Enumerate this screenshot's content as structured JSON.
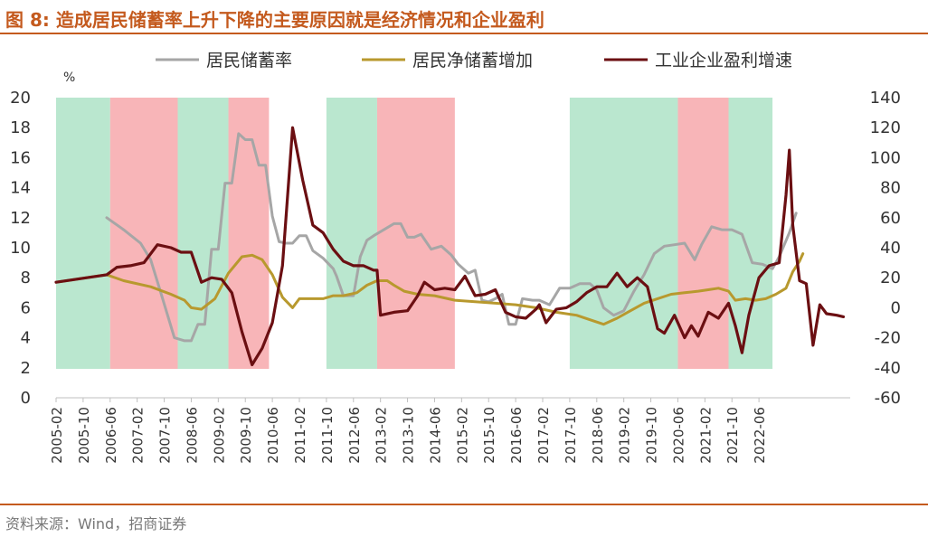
{
  "header": {
    "title": "图 8:  造成居民储蓄率上升下降的主要原因就是经济情况和企业盈利"
  },
  "footer": {
    "source": "资料来源：Wind，招商证券"
  },
  "chart_data": {
    "type": "line",
    "unit_label": "%",
    "left_axis": {
      "ylim": [
        0,
        20
      ],
      "ticks": [
        "0",
        "2",
        "4",
        "6",
        "8",
        "10",
        "12",
        "14",
        "16",
        "18",
        "20"
      ]
    },
    "right_axis": {
      "ylim": [
        -60,
        140
      ],
      "ticks": [
        "-60",
        "-40",
        "-20",
        "0",
        "20",
        "40",
        "60",
        "80",
        "100",
        "120",
        "140"
      ]
    },
    "x_tick_labels": [
      "2005-02",
      "2005-10",
      "2006-06",
      "2007-02",
      "2007-10",
      "2008-06",
      "2009-02",
      "2009-10",
      "2010-06",
      "2011-02",
      "2011-10",
      "2012-06",
      "2013-02",
      "2013-10",
      "2014-06",
      "2015-02",
      "2015-10",
      "2016-06",
      "2017-02",
      "2017-10",
      "2018-06",
      "2019-02",
      "2019-10",
      "2020-06",
      "2021-02",
      "2021-10",
      "2022-06"
    ],
    "legend": [
      {
        "name": "居民储蓄率",
        "color": "#a6a6a6"
      },
      {
        "name": "居民净储蓄增加",
        "color": "#b8992e"
      },
      {
        "name": "工业企业盈利增速",
        "color": "#6b0f12"
      }
    ],
    "shaded_periods": [
      {
        "start": "2005-02",
        "end": "2006-06",
        "color": "green"
      },
      {
        "start": "2006-06",
        "end": "2008-02",
        "color": "red"
      },
      {
        "start": "2008-02",
        "end": "2009-05",
        "color": "green"
      },
      {
        "start": "2009-05",
        "end": "2010-05",
        "color": "red"
      },
      {
        "start": "2011-10",
        "end": "2013-01",
        "color": "green"
      },
      {
        "start": "2013-01",
        "end": "2014-12",
        "color": "red"
      },
      {
        "start": "2017-10",
        "end": "2020-06",
        "color": "green"
      },
      {
        "start": "2020-06",
        "end": "2021-09",
        "color": "red"
      },
      {
        "start": "2021-09",
        "end": "2022-10",
        "color": "green"
      }
    ],
    "series": [
      {
        "name": "居民储蓄率",
        "axis": "left",
        "color": "#a6a6a6",
        "points": [
          [
            "2006-05",
            12.0
          ],
          [
            "2006-10",
            11.2
          ],
          [
            "2007-03",
            10.3
          ],
          [
            "2007-06",
            9.2
          ],
          [
            "2007-09",
            7.0
          ],
          [
            "2007-11",
            5.5
          ],
          [
            "2008-01",
            4.0
          ],
          [
            "2008-04",
            3.8
          ],
          [
            "2008-06",
            3.8
          ],
          [
            "2008-08",
            4.9
          ],
          [
            "2008-10",
            4.9
          ],
          [
            "2008-12",
            9.9
          ],
          [
            "2009-02",
            9.9
          ],
          [
            "2009-04",
            14.3
          ],
          [
            "2009-06",
            14.3
          ],
          [
            "2009-08",
            17.6
          ],
          [
            "2009-10",
            17.2
          ],
          [
            "2009-12",
            17.2
          ],
          [
            "2010-02",
            15.5
          ],
          [
            "2010-04",
            15.5
          ],
          [
            "2010-06",
            12.1
          ],
          [
            "2010-08",
            10.4
          ],
          [
            "2010-10",
            10.3
          ],
          [
            "2010-12",
            10.3
          ],
          [
            "2011-02",
            10.8
          ],
          [
            "2011-04",
            10.8
          ],
          [
            "2011-06",
            9.8
          ],
          [
            "2011-09",
            9.3
          ],
          [
            "2011-12",
            8.6
          ],
          [
            "2012-01",
            8.1
          ],
          [
            "2012-03",
            6.8
          ],
          [
            "2012-06",
            6.8
          ],
          [
            "2012-08",
            9.4
          ],
          [
            "2012-10",
            10.5
          ],
          [
            "2012-12",
            10.8
          ],
          [
            "2013-03",
            11.2
          ],
          [
            "2013-06",
            11.6
          ],
          [
            "2013-08",
            11.6
          ],
          [
            "2013-10",
            10.7
          ],
          [
            "2013-12",
            10.7
          ],
          [
            "2014-02",
            10.9
          ],
          [
            "2014-05",
            9.9
          ],
          [
            "2014-08",
            10.1
          ],
          [
            "2014-11",
            9.5
          ],
          [
            "2015-01",
            8.9
          ],
          [
            "2015-04",
            8.3
          ],
          [
            "2015-06",
            8.5
          ],
          [
            "2015-08",
            6.5
          ],
          [
            "2015-10",
            6.4
          ],
          [
            "2015-12",
            6.6
          ],
          [
            "2016-02",
            6.9
          ],
          [
            "2016-04",
            4.9
          ],
          [
            "2016-06",
            4.9
          ],
          [
            "2016-08",
            6.6
          ],
          [
            "2016-11",
            6.5
          ],
          [
            "2017-01",
            6.5
          ],
          [
            "2017-04",
            6.2
          ],
          [
            "2017-07",
            7.3
          ],
          [
            "2017-10",
            7.3
          ],
          [
            "2018-01",
            7.6
          ],
          [
            "2018-04",
            7.6
          ],
          [
            "2018-06",
            7.2
          ],
          [
            "2018-08",
            6.0
          ],
          [
            "2018-11",
            5.5
          ],
          [
            "2019-02",
            5.8
          ],
          [
            "2019-05",
            7.1
          ],
          [
            "2019-08",
            8.2
          ],
          [
            "2019-11",
            9.6
          ],
          [
            "2020-02",
            10.1
          ],
          [
            "2020-05",
            10.2
          ],
          [
            "2020-08",
            10.3
          ],
          [
            "2020-11",
            9.2
          ],
          [
            "2021-01",
            10.2
          ],
          [
            "2021-04",
            11.4
          ],
          [
            "2021-07",
            11.2
          ],
          [
            "2021-10",
            11.2
          ],
          [
            "2022-01",
            10.9
          ],
          [
            "2022-04",
            9.0
          ],
          [
            "2022-07",
            8.9
          ],
          [
            "2022-10",
            8.6
          ],
          [
            "2022-12",
            9.4
          ],
          [
            "2023-03",
            11.0
          ],
          [
            "2023-05",
            12.3
          ]
        ]
      },
      {
        "name": "居民净储蓄增加",
        "axis": "left",
        "color": "#b8992e",
        "points": [
          [
            "2005-02",
            7.7
          ],
          [
            "2006-05",
            8.2
          ],
          [
            "2006-10",
            7.8
          ],
          [
            "2007-06",
            7.4
          ],
          [
            "2007-12",
            6.9
          ],
          [
            "2008-04",
            6.5
          ],
          [
            "2008-06",
            6.0
          ],
          [
            "2008-09",
            5.9
          ],
          [
            "2009-01",
            6.6
          ],
          [
            "2009-05",
            8.3
          ],
          [
            "2009-09",
            9.4
          ],
          [
            "2009-12",
            9.5
          ],
          [
            "2010-03",
            9.2
          ],
          [
            "2010-06",
            8.2
          ],
          [
            "2010-09",
            6.7
          ],
          [
            "2010-12",
            6.0
          ],
          [
            "2011-02",
            6.6
          ],
          [
            "2011-06",
            6.6
          ],
          [
            "2011-09",
            6.6
          ],
          [
            "2011-12",
            6.8
          ],
          [
            "2012-03",
            6.8
          ],
          [
            "2012-07",
            7.0
          ],
          [
            "2012-10",
            7.5
          ],
          [
            "2013-01",
            7.8
          ],
          [
            "2013-04",
            7.8
          ],
          [
            "2013-06",
            7.5
          ],
          [
            "2013-09",
            7.1
          ],
          [
            "2014-01",
            6.9
          ],
          [
            "2014-06",
            6.8
          ],
          [
            "2014-12",
            6.5
          ],
          [
            "2015-06",
            6.4
          ],
          [
            "2015-12",
            6.3
          ],
          [
            "2016-06",
            6.2
          ],
          [
            "2016-12",
            6.0
          ],
          [
            "2017-06",
            5.7
          ],
          [
            "2017-12",
            5.5
          ],
          [
            "2018-04",
            5.2
          ],
          [
            "2018-08",
            4.9
          ],
          [
            "2018-12",
            5.3
          ],
          [
            "2019-04",
            5.8
          ],
          [
            "2019-08",
            6.3
          ],
          [
            "2019-12",
            6.6
          ],
          [
            "2020-04",
            6.9
          ],
          [
            "2020-08",
            7.0
          ],
          [
            "2020-12",
            7.1
          ],
          [
            "2021-03",
            7.2
          ],
          [
            "2021-06",
            7.3
          ],
          [
            "2021-09",
            7.1
          ],
          [
            "2021-11",
            6.5
          ],
          [
            "2022-02",
            6.6
          ],
          [
            "2022-05",
            6.5
          ],
          [
            "2022-08",
            6.6
          ],
          [
            "2022-11",
            6.9
          ],
          [
            "2023-02",
            7.3
          ],
          [
            "2023-04",
            8.4
          ],
          [
            "2023-06",
            9.1
          ],
          [
            "2023-07",
            9.6
          ]
        ]
      },
      {
        "name": "工业企业盈利增速",
        "axis": "right",
        "color": "#6b0f12",
        "points": [
          [
            "2005-02",
            17
          ],
          [
            "2006-05",
            22
          ],
          [
            "2006-08",
            27
          ],
          [
            "2006-12",
            28
          ],
          [
            "2007-04",
            30
          ],
          [
            "2007-08",
            42
          ],
          [
            "2007-12",
            40
          ],
          [
            "2008-03",
            37
          ],
          [
            "2008-06",
            37
          ],
          [
            "2008-09",
            17
          ],
          [
            "2008-12",
            20
          ],
          [
            "2009-03",
            19
          ],
          [
            "2009-06",
            10
          ],
          [
            "2009-09",
            -16
          ],
          [
            "2009-12",
            -38
          ],
          [
            "2010-03",
            -27
          ],
          [
            "2010-06",
            -10
          ],
          [
            "2010-09",
            28
          ],
          [
            "2010-12",
            120
          ],
          [
            "2011-03",
            85
          ],
          [
            "2011-06",
            55
          ],
          [
            "2011-09",
            50
          ],
          [
            "2011-12",
            39
          ],
          [
            "2012-03",
            31
          ],
          [
            "2012-06",
            28
          ],
          [
            "2012-09",
            28
          ],
          [
            "2012-12",
            25
          ],
          [
            "2013-01",
            25
          ],
          [
            "2013-02",
            -5
          ],
          [
            "2013-06",
            -3
          ],
          [
            "2013-10",
            -2
          ],
          [
            "2014-01",
            8
          ],
          [
            "2014-03",
            17
          ],
          [
            "2014-06",
            12
          ],
          [
            "2014-09",
            13
          ],
          [
            "2014-12",
            12
          ],
          [
            "2015-03",
            21
          ],
          [
            "2015-06",
            8
          ],
          [
            "2015-09",
            9
          ],
          [
            "2015-12",
            12
          ],
          [
            "2016-03",
            -3
          ],
          [
            "2016-06",
            -6
          ],
          [
            "2016-09",
            -7
          ],
          [
            "2016-12",
            -1
          ],
          [
            "2017-01",
            2
          ],
          [
            "2017-03",
            -10
          ],
          [
            "2017-06",
            -1
          ],
          [
            "2017-09",
            0
          ],
          [
            "2017-12",
            4
          ],
          [
            "2018-03",
            10
          ],
          [
            "2018-06",
            14
          ],
          [
            "2018-09",
            14
          ],
          [
            "2018-12",
            23
          ],
          [
            "2019-03",
            14
          ],
          [
            "2019-06",
            20
          ],
          [
            "2019-09",
            14
          ],
          [
            "2019-12",
            -14
          ],
          [
            "2020-02",
            -17
          ],
          [
            "2020-05",
            -5
          ],
          [
            "2020-08",
            -20
          ],
          [
            "2020-10",
            -12
          ],
          [
            "2020-12",
            -19
          ],
          [
            "2021-03",
            -3
          ],
          [
            "2021-06",
            -7
          ],
          [
            "2021-09",
            3
          ],
          [
            "2021-11",
            -12
          ],
          [
            "2022-01",
            -30
          ],
          [
            "2022-03",
            -5
          ],
          [
            "2022-06",
            20
          ],
          [
            "2022-09",
            28
          ],
          [
            "2022-12",
            30
          ],
          [
            "2023-02",
            75
          ],
          [
            "2023-03",
            105
          ],
          [
            "2023-04",
            55
          ],
          [
            "2023-06",
            18
          ],
          [
            "2023-08",
            16
          ],
          [
            "2023-10",
            -25
          ],
          [
            "2023-12",
            2
          ],
          [
            "2024-02",
            -4
          ],
          [
            "2024-05",
            -5
          ],
          [
            "2024-07",
            -6
          ]
        ]
      }
    ]
  }
}
